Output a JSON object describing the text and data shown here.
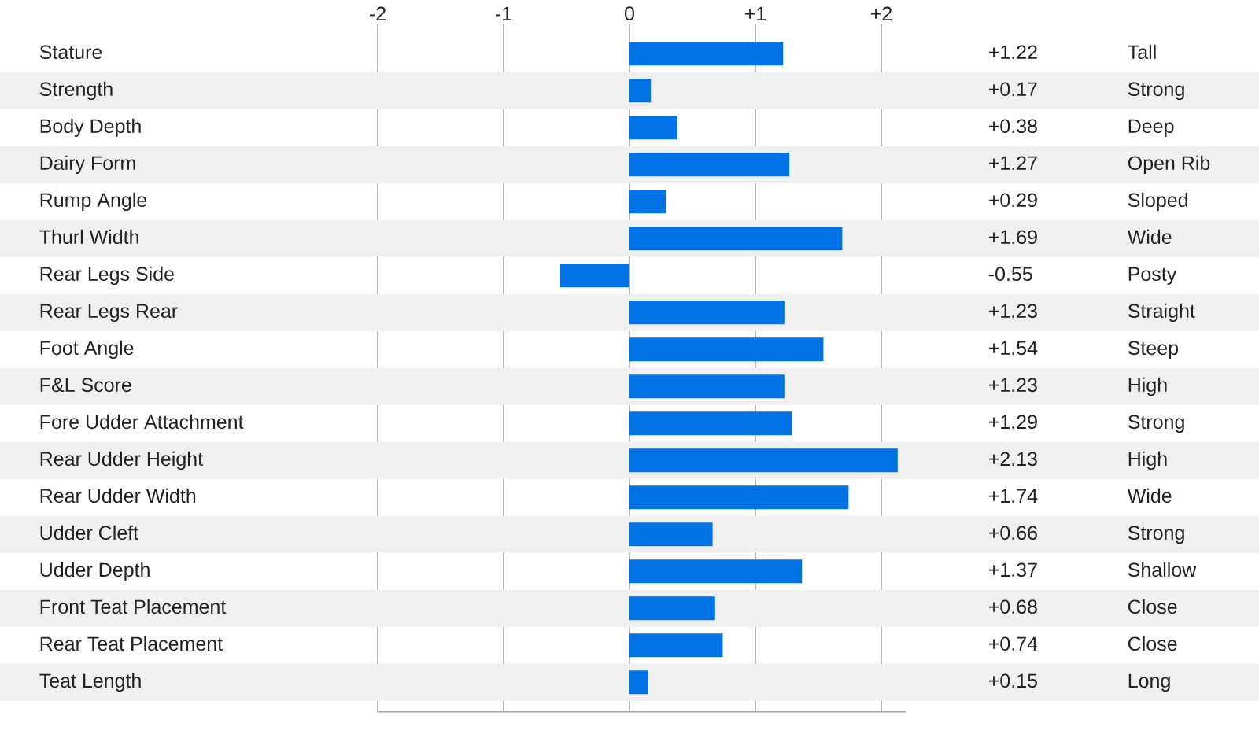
{
  "chart_data": {
    "type": "bar",
    "orientation": "horizontal",
    "categories": [
      "Stature",
      "Strength",
      "Body Depth",
      "Dairy Form",
      "Rump Angle",
      "Thurl Width",
      "Rear Legs Side",
      "Rear Legs Rear",
      "Foot Angle",
      "F&L Score",
      "Fore Udder Attachment",
      "Rear Udder Height",
      "Rear Udder Width",
      "Udder Cleft",
      "Udder Depth",
      "Front Teat Placement",
      "Rear Teat Placement",
      "Teat Length"
    ],
    "values": [
      1.22,
      0.17,
      0.38,
      1.27,
      0.29,
      1.69,
      -0.55,
      1.23,
      1.54,
      1.23,
      1.29,
      2.13,
      1.74,
      0.66,
      1.37,
      0.68,
      0.74,
      0.15
    ],
    "value_labels": [
      "+1.22",
      "+0.17",
      "+0.38",
      "+1.27",
      "+0.29",
      "+1.69",
      "-0.55",
      "+1.23",
      "+1.54",
      "+1.23",
      "+1.29",
      "+2.13",
      "+1.74",
      "+0.66",
      "+1.37",
      "+0.68",
      "+0.74",
      "+0.15"
    ],
    "color": "#0073e6",
    "xlim": [
      -2,
      2.2
    ],
    "xticks": [
      {
        "value": -2,
        "label": "-2"
      },
      {
        "value": -1,
        "label": "-1"
      },
      {
        "value": 0,
        "label": "0"
      },
      {
        "value": 1,
        "label": "+1"
      },
      {
        "value": 2,
        "label": "+2"
      }
    ],
    "grid": "x",
    "annotations": [
      "Tall",
      "Strong",
      "Deep",
      "Open Rib",
      "Sloped",
      "Wide",
      "Posty",
      "Straight",
      "Steep",
      "High",
      "Strong",
      "High",
      "Wide",
      "Strong",
      "Shallow",
      "Close",
      "Close",
      "Long"
    ]
  }
}
